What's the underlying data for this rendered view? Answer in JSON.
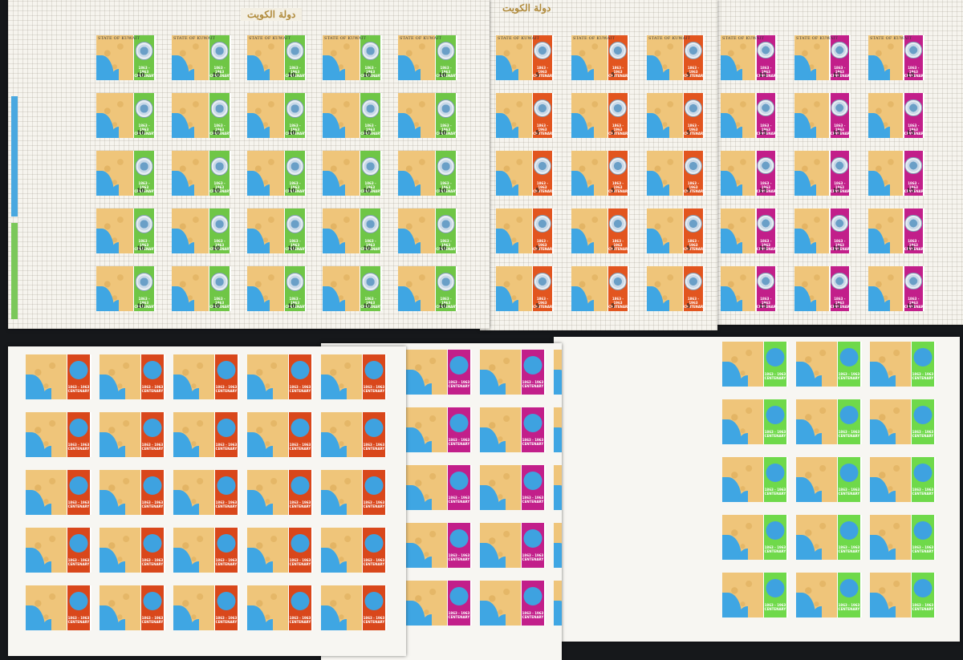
{
  "colors": {
    "background": "#16181b",
    "map": "#efc57a",
    "sea": "#3fa6e3",
    "green": "#6fc646",
    "orange": "#e2551f",
    "magenta": "#c21f8a",
    "red_orange": "#d9471b",
    "lime": "#6fd94a"
  },
  "header_arabic": "دولة الكويت",
  "stamp_caption": "STATE OF KUWAIT",
  "centenary_text": "1863 - 1963 CENTENARY",
  "sheets": {
    "top_left": {
      "panel_color": "#6fc646",
      "value": "10",
      "printed": true
    },
    "top_middle": {
      "panel_color": "#e2551f",
      "value": "5",
      "printed": true
    },
    "top_right": {
      "panel_color": "#c21f8a",
      "value": "15",
      "printed": true
    },
    "bottom_left": {
      "panel_color": "#d9471b",
      "printed": false
    },
    "bottom_middle": {
      "panel_color": "#c21f8a",
      "printed": false
    },
    "bottom_right": {
      "panel_color": "#6fd94a",
      "printed": false
    }
  },
  "icons": [
    "un-emblem-icon",
    "kuwait-map-icon"
  ]
}
